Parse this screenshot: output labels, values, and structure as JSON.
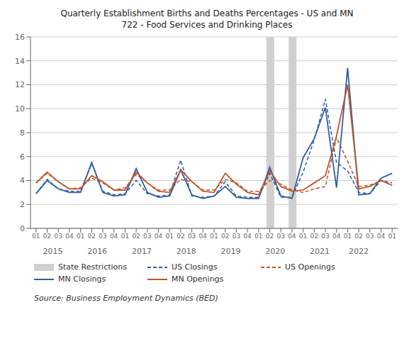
{
  "chart_data": {
    "type": "line",
    "title": "Quarterly Establishment Births and Deaths Percentages - US and MN",
    "subtitle": "722 - Food Services and Drinking Places",
    "source": "Source: Business Employment Dynamics (BED)",
    "categories": [
      "01",
      "02",
      "03",
      "04",
      "01",
      "02",
      "03",
      "04",
      "01",
      "02",
      "03",
      "04",
      "01",
      "02",
      "03",
      "04",
      "01",
      "02",
      "03",
      "04",
      "01",
      "02",
      "03",
      "04",
      "01",
      "02",
      "03",
      "04",
      "01",
      "02",
      "03",
      "04",
      "01"
    ],
    "x_groups": [
      {
        "label": "2015",
        "x": 1.5
      },
      {
        "label": "2016",
        "x": 5.5
      },
      {
        "label": "2017",
        "x": 9.5
      },
      {
        "label": "2018",
        "x": 13.5
      },
      {
        "label": "2019",
        "x": 17.5
      },
      {
        "label": "2020",
        "x": 21.5
      },
      {
        "label": "2021",
        "x": 25.5
      },
      {
        "label": "2022",
        "x": 29.0
      }
    ],
    "shaded_regions": {
      "name": "State Restrictions",
      "color": "#D0D0D0",
      "ranges": [
        [
          20.7,
          21.4
        ],
        [
          22.7,
          23.4
        ]
      ]
    },
    "series": [
      {
        "name": "US Closings",
        "color": "#2E5FA3",
        "line_style": "dashed",
        "values": [
          2.9,
          4.1,
          3.3,
          3.1,
          3.1,
          5.4,
          3.1,
          2.8,
          2.9,
          4.0,
          2.9,
          2.7,
          2.8,
          5.7,
          2.7,
          2.6,
          2.7,
          3.9,
          2.7,
          2.6,
          2.6,
          4.6,
          2.6,
          2.6,
          4.7,
          7.4,
          10.8,
          5.5,
          4.8,
          3.0,
          2.9,
          4.0,
          3.8
        ]
      },
      {
        "name": "US Openings",
        "color": "#C0552A",
        "line_style": "dashed",
        "values": [
          3.8,
          4.6,
          3.9,
          3.3,
          3.4,
          4.2,
          3.8,
          3.2,
          3.4,
          4.5,
          3.8,
          3.2,
          3.2,
          4.1,
          3.9,
          3.2,
          3.2,
          4.1,
          3.8,
          3.1,
          3.1,
          4.0,
          3.7,
          3.2,
          3.0,
          3.3,
          3.5,
          7.6,
          5.6,
          3.5,
          3.6,
          4.0,
          3.6
        ]
      },
      {
        "name": "MN Closings",
        "color": "#2E5FA3",
        "line_style": "solid",
        "values": [
          2.9,
          4.0,
          3.3,
          3.0,
          3.0,
          5.5,
          3.0,
          2.7,
          2.8,
          5.0,
          3.0,
          2.6,
          2.7,
          4.9,
          2.8,
          2.5,
          2.7,
          3.5,
          2.6,
          2.5,
          2.5,
          5.1,
          2.7,
          2.5,
          5.9,
          7.5,
          10.1,
          3.4,
          13.4,
          2.8,
          2.9,
          4.2,
          4.6
        ]
      },
      {
        "name": "MN Openings",
        "color": "#C0552A",
        "line_style": "solid",
        "values": [
          3.8,
          4.7,
          3.9,
          3.3,
          3.3,
          4.4,
          3.9,
          3.2,
          3.2,
          4.7,
          3.8,
          3.1,
          3.0,
          4.9,
          3.9,
          3.1,
          3.0,
          4.6,
          3.7,
          3.0,
          2.8,
          4.8,
          3.5,
          3.1,
          3.2,
          3.8,
          4.4,
          7.7,
          12.0,
          3.3,
          3.5,
          4.0,
          3.6
        ]
      }
    ],
    "ylim": [
      0,
      16
    ],
    "yticks": [
      0,
      2,
      4,
      6,
      8,
      10,
      12,
      14,
      16
    ],
    "grid": true
  }
}
